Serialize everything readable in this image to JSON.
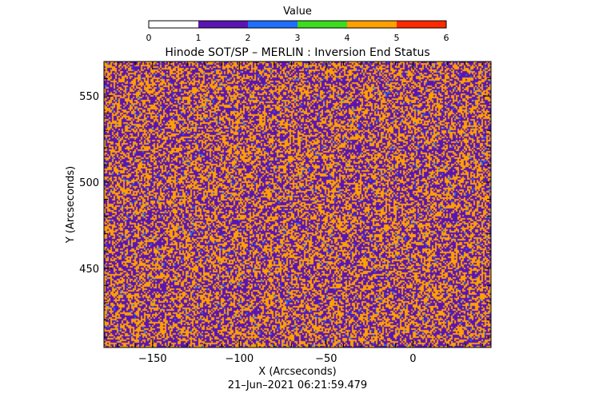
{
  "chart_data": {
    "type": "heatmap",
    "title": "Hinode SOT/SP – MERLIN : Inversion End Status",
    "xlabel": "X (Arcseconds)",
    "ylabel": "Y (Arcseconds)",
    "timestamp": "21–Jun–2021 06:21:59.479",
    "xlim": [
      -178,
      45
    ],
    "ylim": [
      404,
      570
    ],
    "x_ticks": [
      -150,
      -100,
      -50,
      0
    ],
    "x_tick_labels": [
      "−150",
      "−100",
      "−50",
      "0"
    ],
    "y_ticks": [
      450,
      500,
      550
    ],
    "y_tick_labels": [
      "450",
      "500",
      "550"
    ],
    "grid": false,
    "colorbar": {
      "label": "Value",
      "range": [
        0,
        6
      ],
      "ticks": [
        "0",
        "1",
        "2",
        "3",
        "4",
        "5",
        "6"
      ],
      "colors": [
        "#ffffff",
        "#5a14b4",
        "#1e6eff",
        "#3cdc1e",
        "#ffa000",
        "#ff2a00"
      ]
    },
    "value_fractions": {
      "1": 0.5,
      "2": 0.02,
      "4": 0.48
    }
  }
}
